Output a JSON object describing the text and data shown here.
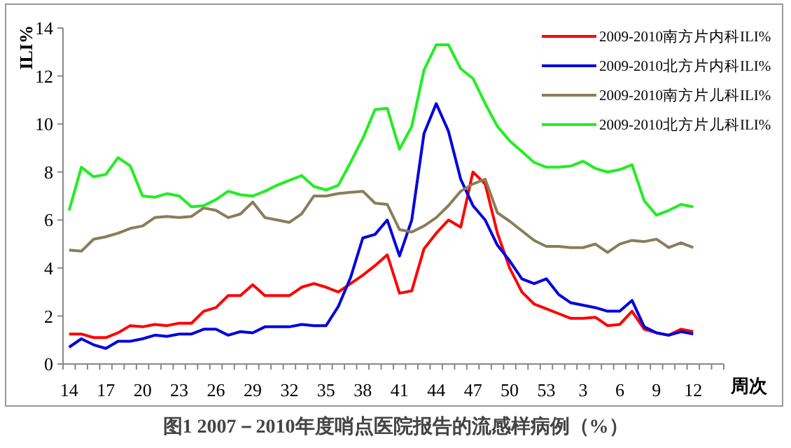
{
  "chart_data": {
    "type": "line",
    "title": "图1  2007－2010年度哨点医院报告的流感样病例（%）",
    "xlabel": "周次",
    "ylabel": "ILI%",
    "categories": [
      "14",
      null,
      null,
      "17",
      null,
      null,
      "20",
      null,
      null,
      "23",
      null,
      null,
      "26",
      null,
      null,
      "29",
      null,
      null,
      "32",
      null,
      null,
      "35",
      null,
      null,
      "38",
      null,
      null,
      "41",
      null,
      null,
      "44",
      null,
      null,
      "47",
      null,
      null,
      "50",
      null,
      null,
      "53",
      null,
      null,
      "3",
      null,
      null,
      "6",
      null,
      null,
      "9",
      null,
      null,
      "12",
      null,
      null
    ],
    "ylim": [
      0,
      14
    ],
    "yticks": [
      0,
      2,
      4,
      6,
      8,
      10,
      12,
      14
    ],
    "grid": false,
    "legend": "top right",
    "marker": "none",
    "line_style": "solid",
    "series": [
      {
        "name": "2009-2010南方片内科ILI%",
        "color": "#ff0000",
        "values": [
          1.25,
          1.25,
          1.1,
          1.1,
          1.3,
          1.6,
          1.55,
          1.65,
          1.6,
          1.7,
          1.7,
          2.2,
          2.35,
          2.85,
          2.85,
          3.3,
          2.85,
          2.85,
          2.85,
          3.2,
          3.35,
          3.2,
          3.0,
          3.35,
          3.7,
          4.1,
          4.55,
          2.95,
          3.05,
          4.8,
          5.45,
          6.0,
          5.7,
          8.0,
          7.5,
          5.45,
          4.0,
          3.0,
          2.5,
          2.3,
          2.1,
          1.9,
          1.9,
          1.95,
          1.6,
          1.65,
          2.2,
          1.45,
          1.3,
          1.2,
          1.45,
          1.35,
          null,
          null
        ]
      },
      {
        "name": "2009-2010北方片内科ILI%",
        "color": "#0000e0",
        "values": [
          0.7,
          1.05,
          0.8,
          0.65,
          0.95,
          0.95,
          1.05,
          1.2,
          1.15,
          1.25,
          1.25,
          1.45,
          1.45,
          1.2,
          1.35,
          1.3,
          1.55,
          1.55,
          1.55,
          1.65,
          1.6,
          1.6,
          2.4,
          3.6,
          5.25,
          5.4,
          6.0,
          4.5,
          6.0,
          9.6,
          10.85,
          9.7,
          7.7,
          6.6,
          6.0,
          4.95,
          4.3,
          3.55,
          3.35,
          3.55,
          2.9,
          2.55,
          2.45,
          2.35,
          2.2,
          2.2,
          2.65,
          1.55,
          1.3,
          1.2,
          1.35,
          1.25,
          null,
          null
        ]
      },
      {
        "name": "2009-2010南方片儿科ILI%",
        "color": "#8b7d5a",
        "values": [
          4.75,
          4.7,
          5.2,
          5.3,
          5.45,
          5.65,
          5.75,
          6.1,
          6.15,
          6.1,
          6.15,
          6.5,
          6.4,
          6.1,
          6.25,
          6.75,
          6.1,
          6.0,
          5.9,
          6.25,
          7.0,
          7.0,
          7.1,
          7.15,
          7.2,
          6.7,
          6.65,
          5.6,
          5.5,
          5.75,
          6.1,
          6.6,
          7.2,
          7.5,
          7.7,
          6.3,
          5.95,
          5.55,
          5.15,
          4.9,
          4.9,
          4.85,
          4.85,
          5.0,
          4.65,
          5.0,
          5.15,
          5.1,
          5.2,
          4.85,
          5.05,
          4.85,
          null,
          null
        ]
      },
      {
        "name": "2009-2010北方片儿科ILI%",
        "color": "#22ee22",
        "values": [
          6.4,
          8.2,
          7.8,
          7.9,
          8.6,
          8.25,
          7.0,
          6.95,
          7.1,
          7.0,
          6.55,
          6.6,
          6.85,
          7.2,
          7.05,
          7.0,
          7.2,
          7.45,
          7.65,
          7.85,
          7.4,
          7.25,
          7.45,
          8.4,
          9.4,
          10.6,
          10.65,
          8.95,
          9.9,
          12.25,
          13.3,
          13.3,
          12.3,
          11.9,
          10.85,
          9.9,
          9.3,
          8.85,
          8.4,
          8.2,
          8.2,
          8.25,
          8.45,
          8.15,
          8.0,
          8.1,
          8.3,
          6.8,
          6.2,
          6.4,
          6.65,
          6.55,
          null,
          null
        ]
      }
    ]
  }
}
